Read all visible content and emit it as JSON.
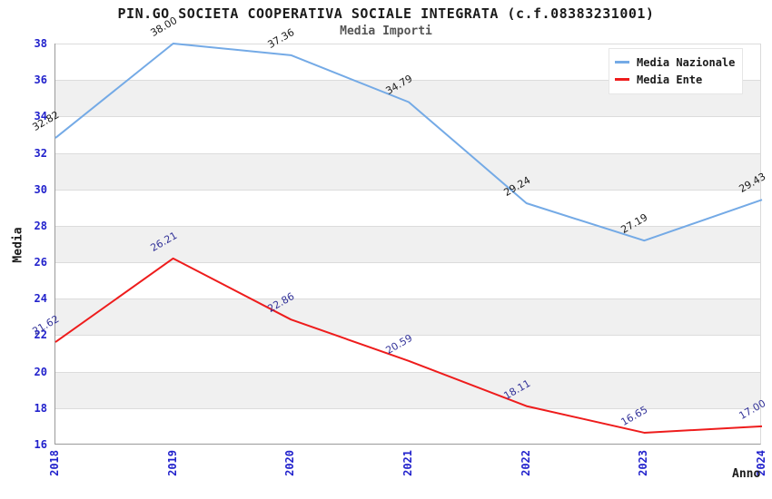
{
  "chart_data": {
    "type": "line",
    "title": "PIN.GO SOCIETA COOPERATIVA SOCIALE INTEGRATA (c.f.08383231001)",
    "subtitle": "Media Importi",
    "x": [
      "2018",
      "2019",
      "2020",
      "2021",
      "2022",
      "2023",
      "2024"
    ],
    "series": [
      {
        "name": "Media Nazionale",
        "color": "#74aae6",
        "label_color": "#1a1a1a",
        "values": [
          32.82,
          38.0,
          37.36,
          34.79,
          29.24,
          27.19,
          29.43
        ]
      },
      {
        "name": "Media Ente",
        "color": "#ee1c1c",
        "label_color": "#333399",
        "values": [
          21.62,
          26.21,
          22.86,
          20.59,
          18.11,
          16.65,
          17.0
        ]
      }
    ],
    "xlabel": "Anno",
    "ylabel": "Media",
    "ylim": [
      16,
      38
    ],
    "ytick_step": 2,
    "value_label_decimals": 2,
    "grid": "horizontal-bands",
    "band_colors": [
      "#ffffff",
      "#f0f0f0"
    ],
    "tick_color": "#2222cc",
    "legend_position": "top-right"
  }
}
